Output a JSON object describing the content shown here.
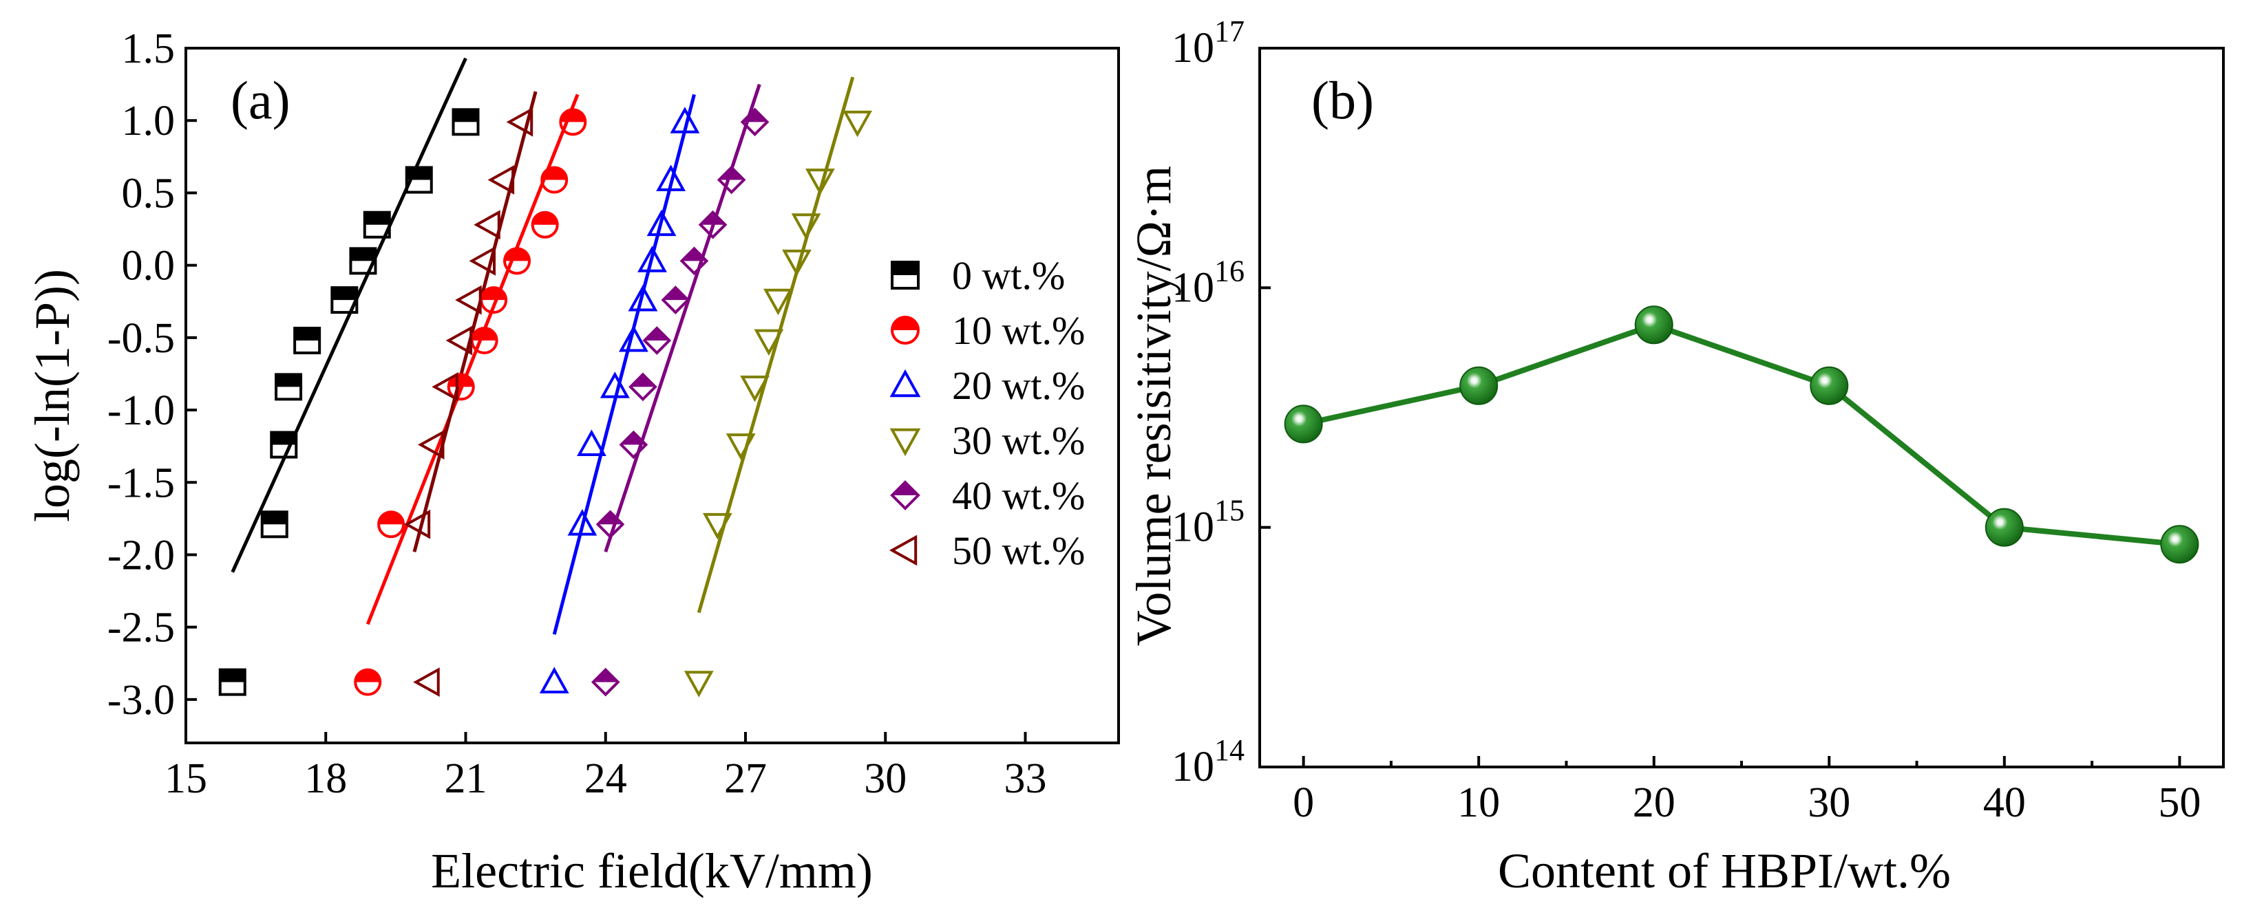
{
  "chart_data": [
    {
      "type": "scatter",
      "panel_label": "(a)",
      "xlabel": "Electric field(kV/mm)",
      "ylabel": "log(-ln(1-P))",
      "xlim": [
        15,
        35
      ],
      "ylim": [
        -3.3,
        1.5
      ],
      "xticks": [
        15,
        18,
        21,
        24,
        27,
        30,
        33
      ],
      "xtick_labels": [
        "15",
        "18",
        "21",
        "24",
        "27",
        "30",
        "33"
      ],
      "yticks": [
        1.5,
        1.0,
        0.5,
        0.0,
        -0.5,
        -1.0,
        -1.5,
        -2.0,
        -2.5,
        -3.0
      ],
      "ytick_labels": [
        "1.5",
        "1.0",
        "0.5",
        "0.0",
        "-0.5",
        "-1.0",
        "-1.5",
        "-2.0",
        "-2.5",
        "-3.0"
      ],
      "legend_position": "right",
      "series": [
        {
          "name": "0 wt.%",
          "marker": "square-half",
          "color": "#000000",
          "x": [
            16.0,
            16.9,
            17.1,
            17.2,
            17.6,
            18.4,
            18.8,
            19.1,
            20.0,
            21.0
          ],
          "y": [
            -2.88,
            -1.79,
            -1.24,
            -0.84,
            -0.52,
            -0.24,
            0.03,
            0.28,
            0.59,
            0.99
          ],
          "fit": [
            [
              16.0,
              -2.12
            ],
            [
              21.0,
              1.43
            ]
          ]
        },
        {
          "name": "10 wt.%",
          "marker": "circle-half",
          "color": "#ff0000",
          "x": [
            18.9,
            19.4,
            20.9,
            21.4,
            21.6,
            22.1,
            22.7,
            22.9,
            23.3
          ],
          "y": [
            -2.88,
            -1.79,
            -0.84,
            -0.52,
            -0.24,
            0.03,
            0.28,
            0.59,
            0.99
          ],
          "fit": [
            [
              18.9,
              -2.48
            ],
            [
              23.4,
              1.18
            ]
          ]
        },
        {
          "name": "20 wt.%",
          "marker": "triangle-up-open",
          "color": "#0000ff",
          "x": [
            22.9,
            23.5,
            23.7,
            24.2,
            24.6,
            24.8,
            25.0,
            25.2,
            25.4,
            25.7
          ],
          "y": [
            -2.88,
            -1.79,
            -1.24,
            -0.84,
            -0.52,
            -0.24,
            0.03,
            0.28,
            0.59,
            0.99
          ],
          "fit": [
            [
              22.9,
              -2.55
            ],
            [
              25.9,
              1.18
            ]
          ]
        },
        {
          "name": "30 wt.%",
          "marker": "triangle-down-open",
          "color": "#808000",
          "x": [
            26.0,
            26.4,
            26.9,
            27.2,
            27.5,
            27.7,
            28.1,
            28.3,
            28.6,
            29.4
          ],
          "y": [
            -2.88,
            -1.79,
            -1.24,
            -0.84,
            -0.52,
            -0.24,
            0.03,
            0.28,
            0.59,
            0.99
          ],
          "fit": [
            [
              26.0,
              -2.4
            ],
            [
              29.3,
              1.3
            ]
          ]
        },
        {
          "name": "40 wt.%",
          "marker": "diamond-half",
          "color": "#800080",
          "x": [
            24.0,
            24.1,
            24.6,
            24.8,
            25.1,
            25.5,
            25.9,
            26.3,
            26.7,
            27.2
          ],
          "y": [
            -2.88,
            -1.79,
            -1.24,
            -0.84,
            -0.52,
            -0.24,
            0.03,
            0.28,
            0.59,
            0.99
          ],
          "fit": [
            [
              24.0,
              -1.98
            ],
            [
              27.3,
              1.25
            ]
          ]
        },
        {
          "name": "50 wt.%",
          "marker": "triangle-left-open",
          "color": "#800000",
          "x": [
            20.2,
            20.0,
            20.3,
            20.6,
            20.9,
            21.1,
            21.4,
            21.5,
            21.8,
            22.2
          ],
          "y": [
            -2.88,
            -1.79,
            -1.24,
            -0.84,
            -0.52,
            -0.24,
            0.03,
            0.28,
            0.59,
            0.99
          ],
          "fit": [
            [
              19.9,
              -1.98
            ],
            [
              22.5,
              1.2
            ]
          ]
        }
      ]
    },
    {
      "type": "line",
      "panel_label": "(b)",
      "xlabel": "Content of  HBPI/wt.%",
      "ylabel": "Volume resisitivity/Ω·m",
      "yscale": "log",
      "xlim": [
        -2.5,
        52.5
      ],
      "ylim": [
        100000000000000.0,
        1e+17
      ],
      "xticks": [
        0,
        10,
        20,
        30,
        40,
        50
      ],
      "xtick_labels": [
        "0",
        "10",
        "20",
        "30",
        "40",
        "50"
      ],
      "yticks": [
        1e+17,
        1e+16,
        1000000000000000.0,
        100000000000000.0
      ],
      "ytick_labels": [
        {
          "base": "10",
          "exp": "17"
        },
        {
          "base": "10",
          "exp": "16"
        },
        {
          "base": "10",
          "exp": "15"
        },
        {
          "base": "10",
          "exp": "14"
        }
      ],
      "series": [
        {
          "name": "Volume resistivity",
          "color": "#208020",
          "x": [
            0,
            10,
            20,
            30,
            40,
            50
          ],
          "y": [
            2700000000000000.0,
            3900000000000000.0,
            7000000000000000.0,
            3900000000000000.0,
            1000000000000000.0,
            850000000000000.0
          ]
        }
      ]
    }
  ]
}
